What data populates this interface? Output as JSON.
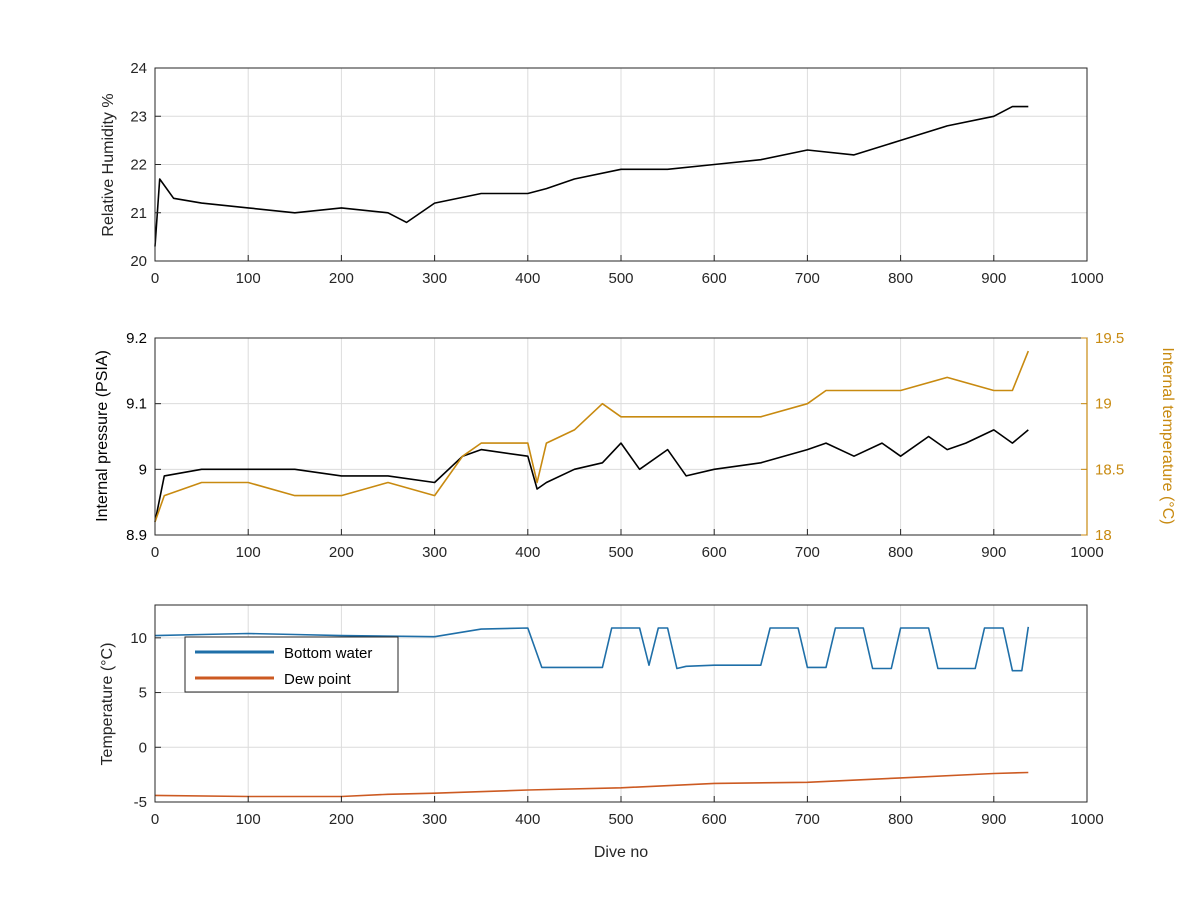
{
  "colors": {
    "black": "#000000",
    "gold": "#c88a10",
    "blue": "#1f6fa8",
    "orange": "#cc5a22",
    "grid": "#dcdcdc",
    "axis": "#262626"
  },
  "chart_data": [
    {
      "type": "line",
      "xlim": [
        0,
        1000
      ],
      "xticks": [
        0,
        100,
        200,
        300,
        400,
        500,
        600,
        700,
        800,
        900,
        1000
      ],
      "ylim": [
        20,
        24
      ],
      "yticks": [
        20,
        21,
        22,
        23,
        24
      ],
      "xlabel": "",
      "ylabel": "Relative Humidity %",
      "grid": true,
      "series": [
        {
          "color": "#000000",
          "x": [
            0,
            5,
            20,
            50,
            100,
            150,
            200,
            250,
            270,
            300,
            350,
            400,
            420,
            450,
            500,
            550,
            600,
            650,
            700,
            750,
            800,
            850,
            900,
            920,
            937
          ],
          "y": [
            20.3,
            21.7,
            21.3,
            21.2,
            21.1,
            21.0,
            21.1,
            21.0,
            20.8,
            21.2,
            21.4,
            21.4,
            21.5,
            21.7,
            21.9,
            21.9,
            22.0,
            22.1,
            22.3,
            22.2,
            22.5,
            22.8,
            23.0,
            23.2,
            23.2
          ]
        }
      ]
    },
    {
      "type": "line",
      "xlim": [
        0,
        1000
      ],
      "xticks": [
        0,
        100,
        200,
        300,
        400,
        500,
        600,
        700,
        800,
        900,
        1000
      ],
      "ylim": [
        8.9,
        9.2
      ],
      "yticks": [
        8.9,
        9.0,
        9.1,
        9.2
      ],
      "ylabel": "Internal pressure (PSIA)",
      "y2lim": [
        18,
        19.5
      ],
      "y2ticks": [
        18,
        18.5,
        19,
        19.5
      ],
      "y2label": "Internal temperature (°C)",
      "grid": true,
      "series": [
        {
          "axis": "left",
          "color": "#000000",
          "x": [
            0,
            10,
            50,
            100,
            150,
            200,
            250,
            300,
            330,
            350,
            400,
            410,
            420,
            450,
            480,
            500,
            520,
            550,
            570,
            600,
            650,
            700,
            720,
            750,
            780,
            800,
            830,
            850,
            870,
            900,
            920,
            937
          ],
          "y": [
            8.92,
            8.99,
            9.0,
            9.0,
            9.0,
            8.99,
            8.99,
            8.98,
            9.02,
            9.03,
            9.02,
            8.97,
            8.98,
            9.0,
            9.01,
            9.04,
            9.0,
            9.03,
            8.99,
            9.0,
            9.01,
            9.03,
            9.04,
            9.02,
            9.04,
            9.02,
            9.05,
            9.03,
            9.04,
            9.06,
            9.04,
            9.06
          ]
        },
        {
          "axis": "right",
          "color": "#c88a10",
          "x": [
            0,
            10,
            50,
            100,
            150,
            200,
            250,
            300,
            330,
            350,
            400,
            410,
            420,
            450,
            480,
            500,
            550,
            600,
            650,
            700,
            720,
            750,
            800,
            850,
            900,
            920,
            937
          ],
          "y": [
            18.1,
            18.3,
            18.4,
            18.4,
            18.3,
            18.3,
            18.4,
            18.3,
            18.6,
            18.7,
            18.7,
            18.4,
            18.7,
            18.8,
            19.0,
            18.9,
            18.9,
            18.9,
            18.9,
            19.0,
            19.1,
            19.1,
            19.1,
            19.2,
            19.1,
            19.1,
            19.4
          ]
        }
      ]
    },
    {
      "type": "line",
      "xlim": [
        0,
        1000
      ],
      "xticks": [
        0,
        100,
        200,
        300,
        400,
        500,
        600,
        700,
        800,
        900,
        1000
      ],
      "ylim": [
        -5,
        13
      ],
      "yticks": [
        -5,
        0,
        5,
        10
      ],
      "xlabel": "Dive no",
      "ylabel": "Temperature (°C)",
      "grid": true,
      "legend": "top-left",
      "series": [
        {
          "name": "Bottom water",
          "color": "#1f6fa8",
          "x": [
            0,
            50,
            100,
            150,
            200,
            300,
            350,
            400,
            415,
            425,
            430,
            435,
            480,
            490,
            520,
            530,
            540,
            550,
            560,
            570,
            600,
            650,
            660,
            690,
            700,
            720,
            730,
            760,
            770,
            790,
            800,
            830,
            840,
            880,
            890,
            910,
            920,
            930,
            937
          ],
          "y": [
            10.2,
            10.3,
            10.4,
            10.3,
            10.2,
            10.1,
            10.8,
            10.9,
            7.3,
            7.3,
            7.3,
            7.3,
            7.3,
            10.9,
            10.9,
            7.5,
            10.9,
            10.9,
            7.2,
            7.4,
            7.5,
            7.5,
            10.9,
            10.9,
            7.3,
            7.3,
            10.9,
            10.9,
            7.2,
            7.2,
            10.9,
            10.9,
            7.2,
            7.2,
            10.9,
            10.9,
            7.0,
            7.0,
            11.0
          ]
        },
        {
          "name": "Dew point",
          "color": "#cc5a22",
          "x": [
            0,
            100,
            200,
            250,
            300,
            400,
            500,
            600,
            700,
            800,
            900,
            937
          ],
          "y": [
            -4.4,
            -4.5,
            -4.5,
            -4.3,
            -4.2,
            -3.9,
            -3.7,
            -3.3,
            -3.2,
            -2.8,
            -2.4,
            -2.3
          ]
        }
      ]
    }
  ]
}
